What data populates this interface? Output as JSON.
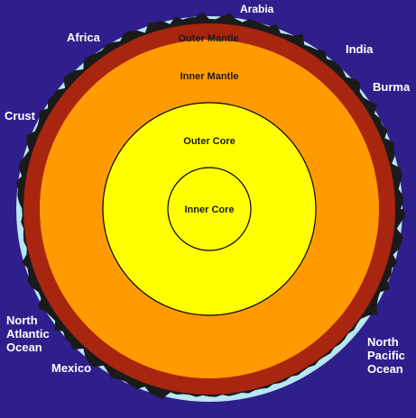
{
  "layers": {
    "outer_mantle": "Outer Mantle",
    "inner_mantle": "Inner Mantle",
    "outer_core": "Outer Core",
    "inner_core": "Inner Core",
    "crust": "Crust"
  },
  "places": {
    "arabia": "Arabia",
    "africa": "Africa",
    "india": "India",
    "burma": "Burma",
    "north_atlantic_ocean": [
      "North",
      "Atlantic",
      "Ocean"
    ],
    "mexico": "Mexico",
    "north_pacific_ocean": [
      "North",
      "Pacific",
      "Ocean"
    ]
  },
  "colors": {
    "background": "#2f1f8c",
    "ocean": "#b8e6f2",
    "crust": "#1a1a1a",
    "outer_mantle": "#a82510",
    "inner_mantle": "#ff9a00",
    "outer_core": "#ffff00",
    "inner_core": "#ffff00",
    "outline": "#000000"
  }
}
